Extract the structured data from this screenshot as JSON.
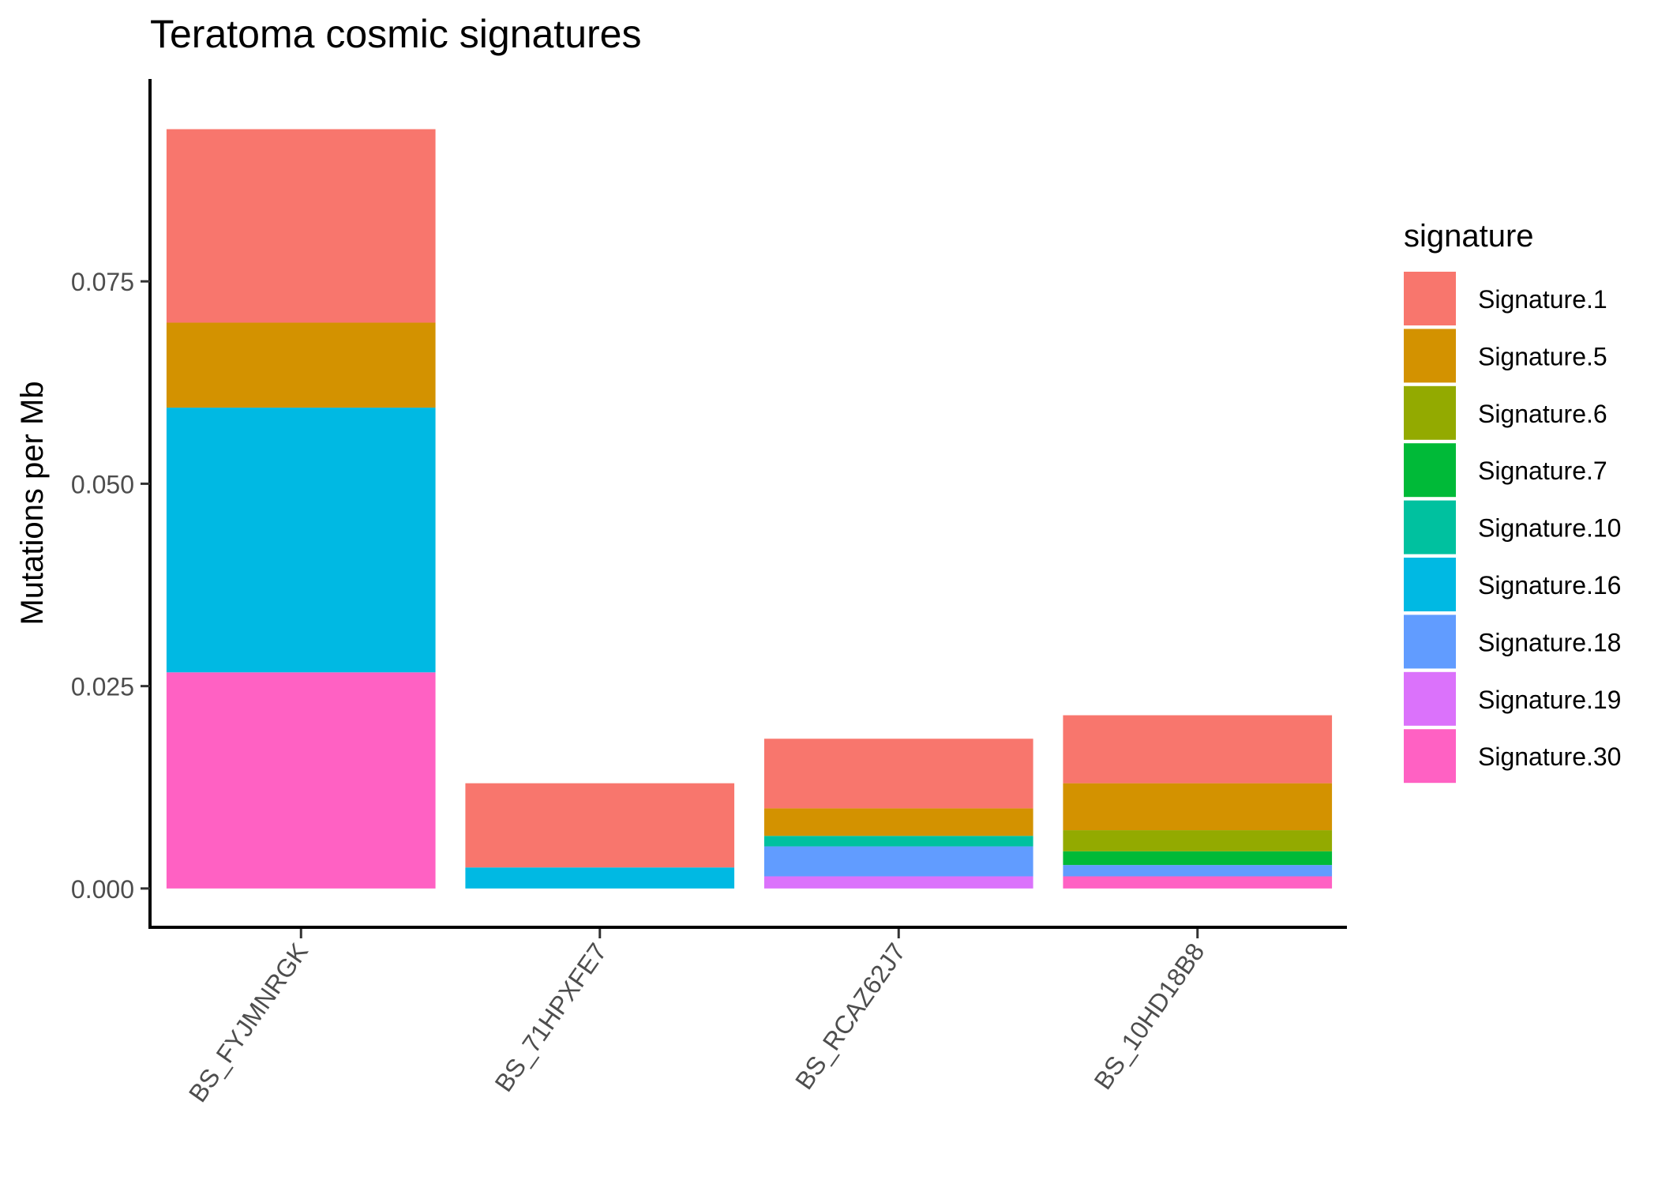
{
  "chart_data": {
    "type": "bar",
    "stacked": true,
    "title": "Teratoma cosmic signatures",
    "ylabel": "Mutations per Mb",
    "xlabel": "",
    "ylim": [
      -0.0046,
      0.1
    ],
    "yticks": [
      0.0,
      0.025,
      0.05,
      0.075
    ],
    "ytick_labels": [
      "0.000",
      "0.025",
      "0.050",
      "0.075"
    ],
    "categories": [
      "BS_FYJMNRGK",
      "BS_71HPXFE7",
      "BS_RCAZ62J7",
      "BS_10HD18B8"
    ],
    "legend": {
      "title": "signature",
      "placement": "right"
    },
    "grid": false,
    "series": [
      {
        "name": "Signature.1",
        "color": "#F8766D",
        "values": [
          0.0239,
          0.0104,
          0.0086,
          0.0084
        ]
      },
      {
        "name": "Signature.5",
        "color": "#D39200",
        "values": [
          0.0105,
          0.0,
          0.0034,
          0.0058
        ]
      },
      {
        "name": "Signature.6",
        "color": "#93AA00",
        "values": [
          0.0,
          0.0,
          0.0,
          0.0026
        ]
      },
      {
        "name": "Signature.7",
        "color": "#00BA38",
        "values": [
          0.0,
          0.0,
          0.0,
          0.0017
        ]
      },
      {
        "name": "Signature.10",
        "color": "#00C19F",
        "values": [
          0.0,
          0.0,
          0.0013,
          0.0
        ]
      },
      {
        "name": "Signature.16",
        "color": "#00B9E3",
        "values": [
          0.0327,
          0.0026,
          0.0,
          0.0
        ]
      },
      {
        "name": "Signature.18",
        "color": "#619CFF",
        "values": [
          0.0,
          0.0,
          0.0037,
          0.0014
        ]
      },
      {
        "name": "Signature.19",
        "color": "#DB72FB",
        "values": [
          0.0,
          0.0,
          0.0015,
          0.0
        ]
      },
      {
        "name": "Signature.30",
        "color": "#FF61C3",
        "values": [
          0.0267,
          0.0,
          0.0,
          0.0015
        ]
      }
    ]
  }
}
